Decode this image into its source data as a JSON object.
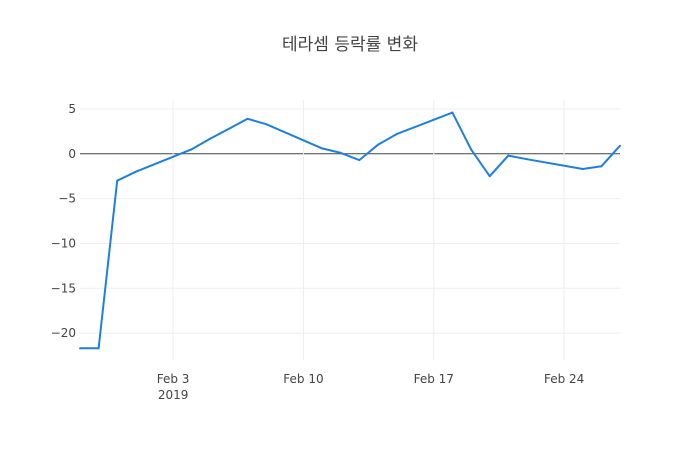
{
  "chart_data": {
    "type": "line",
    "title": "테라셈 등락률 변화",
    "xlabel": "",
    "ylabel": "",
    "x": [
      "2019-01-29",
      "2019-01-30",
      "2019-01-31",
      "2019-02-01",
      "2019-02-04",
      "2019-02-05",
      "2019-02-06",
      "2019-02-07",
      "2019-02-08",
      "2019-02-11",
      "2019-02-12",
      "2019-02-13",
      "2019-02-14",
      "2019-02-15",
      "2019-02-18",
      "2019-02-19",
      "2019-02-20",
      "2019-02-21",
      "2019-02-22",
      "2019-02-25",
      "2019-02-26",
      "2019-02-27"
    ],
    "series": [
      {
        "values": [
          -21.7,
          -21.7,
          -3.0,
          -2.0,
          0.5,
          1.7,
          2.8,
          3.9,
          3.3,
          0.6,
          0.1,
          -0.7,
          1.0,
          2.2,
          4.6,
          0.5,
          -2.5,
          -0.2,
          -0.6,
          -1.7,
          -1.4,
          0.9
        ]
      }
    ],
    "xlim": [
      "2019-01-29",
      "2019-02-27"
    ],
    "ylim": [
      -23,
      6
    ],
    "yticks": [
      5,
      0,
      -5,
      -10,
      -15,
      -20
    ],
    "ytick_labels": [
      "5",
      "0",
      "−5",
      "−10",
      "−15",
      "−20"
    ],
    "xticks": [
      "2019-02-03",
      "2019-02-10",
      "2019-02-17",
      "2019-02-24"
    ],
    "xtick_labels": [
      "Feb 3",
      "Feb 10",
      "Feb 17",
      "Feb 24"
    ],
    "xtick_sublabel": "2019",
    "grid": true,
    "line_color": "#1f7fe0",
    "zero_line_color": "#444444",
    "grid_color": "#eeeeee"
  }
}
